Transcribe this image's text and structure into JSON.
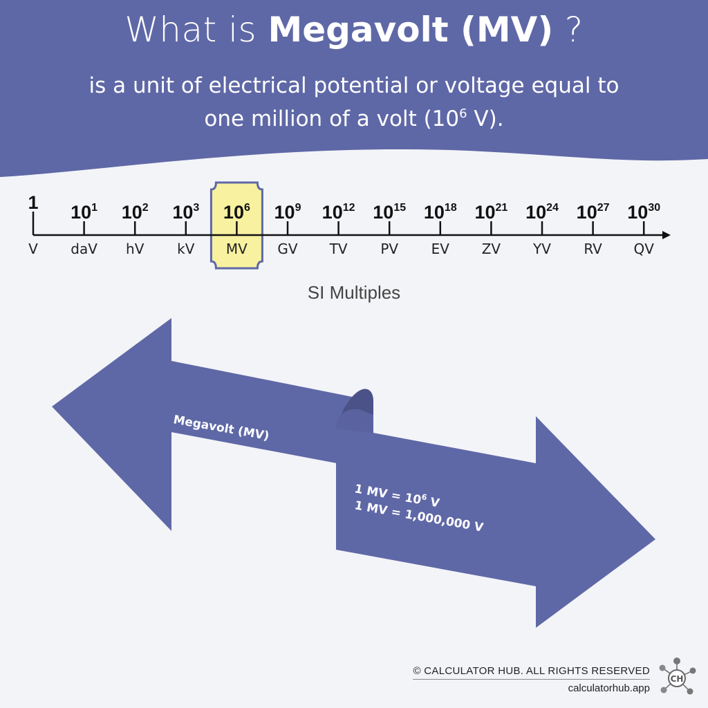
{
  "header": {
    "title_prefix": "What is ",
    "title_unit": "Megavolt (MV)",
    "title_suffix": " ?",
    "subtitle_line1": "is a unit of electrical potential or voltage equal to",
    "subtitle_line2_before": "one million of a volt (10",
    "subtitle_line2_exp": "6",
    "subtitle_line2_after": " V)."
  },
  "scale": {
    "ticks": [
      {
        "base": "1",
        "exp": "",
        "unit": "V"
      },
      {
        "base": "10",
        "exp": "1",
        "unit": "daV"
      },
      {
        "base": "10",
        "exp": "2",
        "unit": "hV"
      },
      {
        "base": "10",
        "exp": "3",
        "unit": "kV"
      },
      {
        "base": "10",
        "exp": "6",
        "unit": "MV"
      },
      {
        "base": "10",
        "exp": "9",
        "unit": "GV"
      },
      {
        "base": "10",
        "exp": "12",
        "unit": "TV"
      },
      {
        "base": "10",
        "exp": "15",
        "unit": "PV"
      },
      {
        "base": "10",
        "exp": "18",
        "unit": "EV"
      },
      {
        "base": "10",
        "exp": "21",
        "unit": "ZV"
      },
      {
        "base": "10",
        "exp": "24",
        "unit": "YV"
      },
      {
        "base": "10",
        "exp": "27",
        "unit": "RV"
      },
      {
        "base": "10",
        "exp": "30",
        "unit": "QV"
      }
    ],
    "highlight_index": 4,
    "caption": "SI Multiples"
  },
  "conversion": {
    "left_label": "Megavolt (MV)",
    "line1_before": "1 MV = 10",
    "line1_exp": "6",
    "line1_after": " V",
    "line2": "1 MV = 1,000,000 V"
  },
  "footer": {
    "copyright": "© CALCULATOR HUB. ALL RIGHTS RESERVED",
    "site": "calculatorhub.app",
    "logo_text": "CH"
  },
  "colors": {
    "primary": "#5f68a6",
    "primary_dark": "#4a5288",
    "highlight_fill": "#f7f1a0",
    "background": "#f3f4f8"
  }
}
